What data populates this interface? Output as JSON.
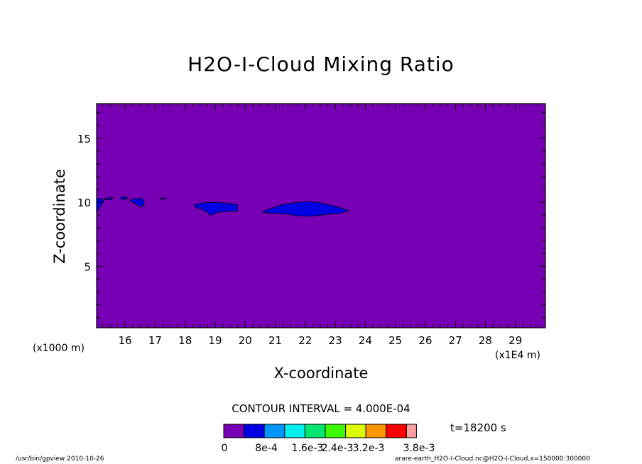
{
  "chart_data": {
    "type": "heatmap",
    "title": "H2O-I-Cloud Mixing Ratio",
    "xlabel": "X-coordinate",
    "ylabel": "Z-coordinate",
    "x_unit_label": "(x1E4 m)",
    "y_unit_label": "(x1000 m)",
    "xlim": [
      15.05,
      30.0
    ],
    "ylim": [
      0.2,
      17.7
    ],
    "x_ticks": [
      "16",
      "17",
      "18",
      "19",
      "20",
      "21",
      "22",
      "23",
      "24",
      "25",
      "26",
      "27",
      "28",
      "29"
    ],
    "y_ticks": [
      "5",
      "10",
      "15"
    ],
    "background_level_color": "#7800b4",
    "level_colors": [
      "#7800b4",
      "#0000e6",
      "#0096ff",
      "#00f0f0",
      "#00e66e",
      "#3cfa00",
      "#dcfa00",
      "#ff9600",
      "#ff0000",
      "#ffa0a0"
    ],
    "colorbar_labels": [
      "0",
      "8e-4",
      "1.6e-3",
      "2.4e-3",
      "3.2e-3",
      "3.8e-3"
    ],
    "contour_interval": "CONTOUR INTERVAL = 4.000E-04",
    "time": "t=18200 s",
    "regions": [
      {
        "level": "8e-4",
        "points": [
          [
            15.05,
            9.2
          ],
          [
            15.15,
            9.6
          ],
          [
            15.3,
            10.1
          ],
          [
            15.2,
            10.3
          ],
          [
            15.05,
            10.3
          ]
        ]
      },
      {
        "level": "8e-4",
        "points": [
          [
            15.35,
            10.3
          ],
          [
            15.6,
            10.4
          ],
          [
            15.55,
            10.2
          ],
          [
            15.3,
            10.2
          ]
        ]
      },
      {
        "level": "8e-4",
        "points": [
          [
            15.85,
            10.4
          ],
          [
            16.0,
            10.45
          ],
          [
            16.1,
            10.3
          ],
          [
            15.95,
            10.2
          ],
          [
            15.85,
            10.3
          ]
        ]
      },
      {
        "level": "8e-4",
        "points": [
          [
            16.2,
            10.2
          ],
          [
            16.55,
            10.35
          ],
          [
            16.65,
            10.0
          ],
          [
            16.55,
            9.6
          ],
          [
            16.3,
            9.95
          ],
          [
            16.15,
            10.1
          ]
        ]
      },
      {
        "level": "8e-4",
        "points": [
          [
            17.15,
            10.3
          ],
          [
            17.35,
            10.35
          ],
          [
            17.35,
            10.25
          ],
          [
            17.15,
            10.25
          ]
        ]
      },
      {
        "level": "8e-4",
        "points": [
          [
            18.3,
            9.8
          ],
          [
            18.6,
            9.95
          ],
          [
            19.0,
            10.0
          ],
          [
            19.5,
            9.9
          ],
          [
            19.75,
            9.8
          ],
          [
            19.75,
            9.3
          ],
          [
            19.45,
            9.3
          ],
          [
            19.25,
            9.25
          ],
          [
            19.05,
            9.2
          ],
          [
            18.85,
            8.95
          ],
          [
            18.75,
            9.2
          ],
          [
            18.5,
            9.5
          ],
          [
            18.3,
            9.65
          ]
        ]
      },
      {
        "level": "8e-4",
        "points": [
          [
            20.6,
            9.3
          ],
          [
            20.9,
            9.55
          ],
          [
            21.2,
            9.8
          ],
          [
            21.6,
            9.95
          ],
          [
            22.0,
            10.05
          ],
          [
            22.4,
            10.0
          ],
          [
            22.9,
            9.75
          ],
          [
            23.2,
            9.55
          ],
          [
            23.45,
            9.35
          ],
          [
            23.2,
            9.15
          ],
          [
            22.7,
            9.05
          ],
          [
            22.2,
            8.9
          ],
          [
            21.7,
            8.95
          ],
          [
            21.3,
            9.1
          ],
          [
            20.9,
            9.15
          ],
          [
            20.6,
            9.2
          ]
        ]
      }
    ]
  },
  "footer": {
    "left": "/usr/bin/gpview   2010-10-26",
    "right": "arare-earth_H2O-I-Cloud.nc@H2O-I-Cloud,x=150000:300000"
  }
}
